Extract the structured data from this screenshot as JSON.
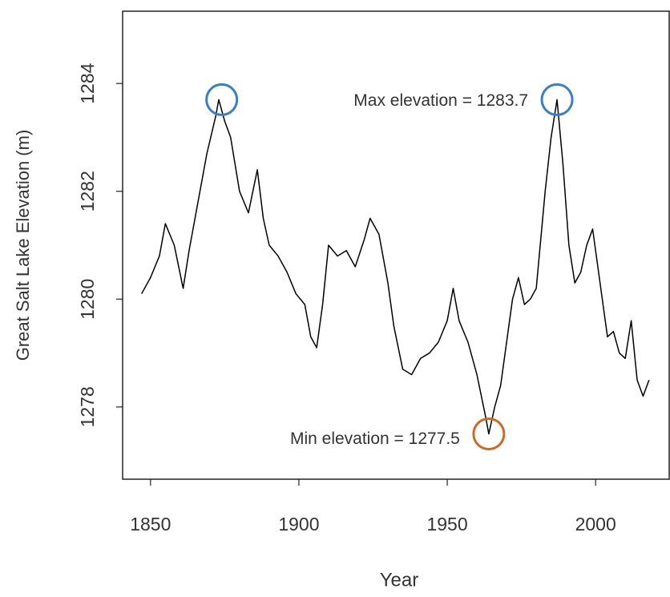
{
  "chart_data": {
    "type": "line",
    "x_label": "Year",
    "y_label": "Great Salt Lake Elevation (m)",
    "x": [
      1847,
      1850,
      1853,
      1855,
      1858,
      1861,
      1863,
      1866,
      1869,
      1872,
      1873,
      1875,
      1877,
      1880,
      1883,
      1886,
      1888,
      1890,
      1893,
      1896,
      1899,
      1902,
      1904,
      1906,
      1908,
      1910,
      1913,
      1916,
      1919,
      1922,
      1924,
      1927,
      1930,
      1932,
      1935,
      1938,
      1941,
      1944,
      1947,
      1950,
      1952,
      1954,
      1957,
      1960,
      1963,
      1964,
      1966,
      1968,
      1970,
      1972,
      1974,
      1976,
      1978,
      1980,
      1983,
      1985,
      1987,
      1989,
      1991,
      1993,
      1995,
      1997,
      1999,
      2002,
      2004,
      2006,
      2008,
      2010,
      2012,
      2014,
      2016,
      2018
    ],
    "values": [
      1280.1,
      1280.4,
      1280.8,
      1281.4,
      1281.0,
      1280.2,
      1280.9,
      1281.8,
      1282.7,
      1283.4,
      1283.7,
      1283.3,
      1283.0,
      1282.0,
      1281.6,
      1282.4,
      1281.5,
      1281.0,
      1280.8,
      1280.5,
      1280.1,
      1279.9,
      1279.3,
      1279.1,
      1279.9,
      1281.0,
      1280.8,
      1280.9,
      1280.6,
      1281.1,
      1281.5,
      1281.2,
      1280.3,
      1279.5,
      1278.7,
      1278.6,
      1278.9,
      1279.0,
      1279.2,
      1279.6,
      1280.2,
      1279.6,
      1279.2,
      1278.6,
      1277.8,
      1277.5,
      1278.0,
      1278.4,
      1279.2,
      1280.0,
      1280.4,
      1279.9,
      1280.0,
      1280.2,
      1282.0,
      1283.0,
      1283.7,
      1282.5,
      1281.0,
      1280.3,
      1280.5,
      1281.0,
      1281.3,
      1280.1,
      1279.3,
      1279.4,
      1279.0,
      1278.9,
      1279.6,
      1278.5,
      1278.2,
      1278.5
    ],
    "color": "#000000",
    "xlim": [
      1840.6,
      2024.8
    ],
    "xticks": [
      1850,
      1900,
      1950,
      2000
    ],
    "ylim": [
      1276.66,
      1285.34
    ],
    "yticks": [
      1278,
      1280,
      1282,
      1284
    ],
    "annotations": [
      {
        "label": "Max elevation = 1283.7",
        "value": 1283.7,
        "x": [
          1874,
          1987
        ],
        "color": "#3a7fc4"
      },
      {
        "label": "Min elevation = 1277.5",
        "value": 1277.5,
        "x": [
          1964
        ],
        "color": "#cc6a28"
      }
    ]
  }
}
